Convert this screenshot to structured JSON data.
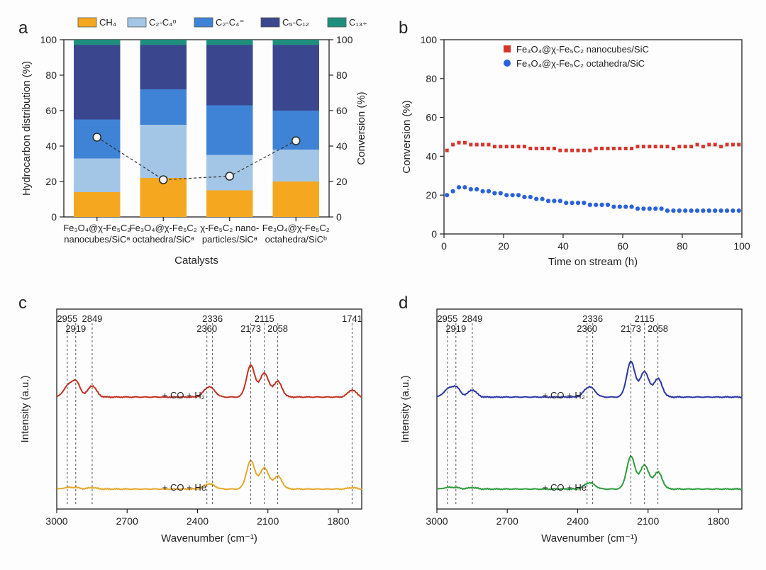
{
  "panelA": {
    "label": "a",
    "type": "stacked-bar+line",
    "xlabel": "Catalysts",
    "ylabel_left": "Hydrocarbon distribution (%)",
    "ylabel_right": "Conversion (%)",
    "ylim": [
      0,
      100
    ],
    "ytick_step": 20,
    "categories_line1": [
      "Fe₃O₄@χ-Fe₅C₂",
      "Fe₃O₄@χ-Fe₅C₂",
      "χ-Fe₅C₂ nano-",
      "Fe₃O₄@χ-Fe₅C₂"
    ],
    "categories_line2": [
      "nanocubes/SiCᵃ",
      "octahedra/SiCᵃ",
      "particles/SiCᵃ",
      "octahedra/SiCᵇ"
    ],
    "legend": [
      {
        "label": "CH₄",
        "color": "#f5a81f"
      },
      {
        "label": "C₂-C₄ᵒ",
        "color": "#a4c6e6"
      },
      {
        "label": "C₂-C₄⁼",
        "color": "#3f83d6"
      },
      {
        "label": "C₅-C₁₂",
        "color": "#3a468e"
      },
      {
        "label": "C₁₃₊",
        "color": "#1e8f7d"
      }
    ],
    "stacks": [
      [
        14,
        19,
        22,
        42,
        3
      ],
      [
        22,
        30,
        20,
        25,
        3
      ],
      [
        15,
        20,
        28,
        34,
        3
      ],
      [
        20,
        18,
        22,
        37,
        3
      ]
    ],
    "conversion": [
      45,
      21,
      23,
      43
    ],
    "line_color": "#333333",
    "line_marker_stroke": "#2d2d2d",
    "line_marker_fill": "#f2f4f6",
    "background": "#ffffff",
    "bar_width": 0.7,
    "label_fontsize": 15,
    "tick_fontsize": 14
  },
  "panelB": {
    "label": "b",
    "type": "scatter-line",
    "xlabel": "Time on stream (h)",
    "ylabel": "Conversion (%)",
    "xlim": [
      0,
      100
    ],
    "ylim": [
      0,
      100
    ],
    "xtick_step": 20,
    "ytick_step": 20,
    "legend": [
      {
        "label": "Fe₃O₄@χ-Fe₅C₂ nanocubes/SiC",
        "marker": "square",
        "color": "#d6352b"
      },
      {
        "label": "Fe₃O₄@χ-Fe₅C₂ octahedra/SiC",
        "marker": "circle",
        "color": "#2a62d8"
      }
    ],
    "series_red": [
      [
        1,
        43
      ],
      [
        3,
        46
      ],
      [
        5,
        47
      ],
      [
        7,
        47
      ],
      [
        9,
        46
      ],
      [
        11,
        46
      ],
      [
        13,
        46
      ],
      [
        15,
        46
      ],
      [
        17,
        45
      ],
      [
        19,
        45
      ],
      [
        21,
        45
      ],
      [
        23,
        45
      ],
      [
        25,
        45
      ],
      [
        27,
        45
      ],
      [
        29,
        44
      ],
      [
        31,
        44
      ],
      [
        33,
        44
      ],
      [
        35,
        44
      ],
      [
        37,
        44
      ],
      [
        39,
        43
      ],
      [
        41,
        43
      ],
      [
        43,
        43
      ],
      [
        45,
        43
      ],
      [
        47,
        43
      ],
      [
        49,
        43
      ],
      [
        51,
        44
      ],
      [
        53,
        44
      ],
      [
        55,
        44
      ],
      [
        57,
        44
      ],
      [
        59,
        44
      ],
      [
        61,
        44
      ],
      [
        63,
        44
      ],
      [
        65,
        45
      ],
      [
        67,
        45
      ],
      [
        69,
        45
      ],
      [
        71,
        45
      ],
      [
        73,
        45
      ],
      [
        75,
        45
      ],
      [
        77,
        44
      ],
      [
        79,
        45
      ],
      [
        81,
        45
      ],
      [
        83,
        45
      ],
      [
        85,
        46
      ],
      [
        87,
        45
      ],
      [
        89,
        46
      ],
      [
        91,
        46
      ],
      [
        93,
        45
      ],
      [
        95,
        46
      ],
      [
        97,
        46
      ],
      [
        99,
        46
      ]
    ],
    "series_blue": [
      [
        1,
        20
      ],
      [
        3,
        22
      ],
      [
        5,
        24
      ],
      [
        7,
        24
      ],
      [
        9,
        23
      ],
      [
        11,
        23
      ],
      [
        13,
        22
      ],
      [
        15,
        22
      ],
      [
        17,
        21
      ],
      [
        19,
        21
      ],
      [
        21,
        20
      ],
      [
        23,
        20
      ],
      [
        25,
        20
      ],
      [
        27,
        19
      ],
      [
        29,
        19
      ],
      [
        31,
        18
      ],
      [
        33,
        18
      ],
      [
        35,
        17
      ],
      [
        37,
        17
      ],
      [
        39,
        17
      ],
      [
        41,
        16
      ],
      [
        43,
        16
      ],
      [
        45,
        16
      ],
      [
        47,
        16
      ],
      [
        49,
        15
      ],
      [
        51,
        15
      ],
      [
        53,
        15
      ],
      [
        55,
        15
      ],
      [
        57,
        14
      ],
      [
        59,
        14
      ],
      [
        61,
        14
      ],
      [
        63,
        14
      ],
      [
        65,
        13
      ],
      [
        67,
        13
      ],
      [
        69,
        13
      ],
      [
        71,
        13
      ],
      [
        73,
        13
      ],
      [
        75,
        12
      ],
      [
        77,
        12
      ],
      [
        79,
        12
      ],
      [
        81,
        12
      ],
      [
        83,
        12
      ],
      [
        85,
        12
      ],
      [
        87,
        12
      ],
      [
        89,
        12
      ],
      [
        91,
        12
      ],
      [
        93,
        12
      ],
      [
        95,
        12
      ],
      [
        97,
        12
      ],
      [
        99,
        12
      ]
    ],
    "marker_size": 5,
    "background": "#ffffff"
  },
  "panelC": {
    "label": "c",
    "type": "spectra",
    "xlabel": "Wavenumber (cm⁻¹)",
    "ylabel": "Intensity (a.u.)",
    "xlim": [
      3000,
      1700
    ],
    "xticks": [
      3000,
      2700,
      2400,
      2100,
      1800
    ],
    "peaks": [
      2955,
      2919,
      2849,
      2360,
      2336,
      2173,
      2115,
      2058,
      1741
    ],
    "traces": [
      {
        "name": "+ CO + H₂",
        "color": "#c23225"
      },
      {
        "name": "+ CO + He",
        "color": "#e6a82c"
      }
    ],
    "background": "#ffffff"
  },
  "panelD": {
    "label": "d",
    "type": "spectra",
    "xlabel": "Wavenumber (cm⁻¹)",
    "ylabel": "Intensity (a.u.)",
    "xlim": [
      3000,
      1700
    ],
    "xticks": [
      3000,
      2700,
      2400,
      2100,
      1800
    ],
    "peaks": [
      2955,
      2919,
      2849,
      2360,
      2336,
      2173,
      2115,
      2058
    ],
    "traces": [
      {
        "name": "+ CO + H₂",
        "color": "#2c37a5"
      },
      {
        "name": "+ CO + He",
        "color": "#2e9c3e"
      }
    ],
    "background": "#ffffff"
  }
}
